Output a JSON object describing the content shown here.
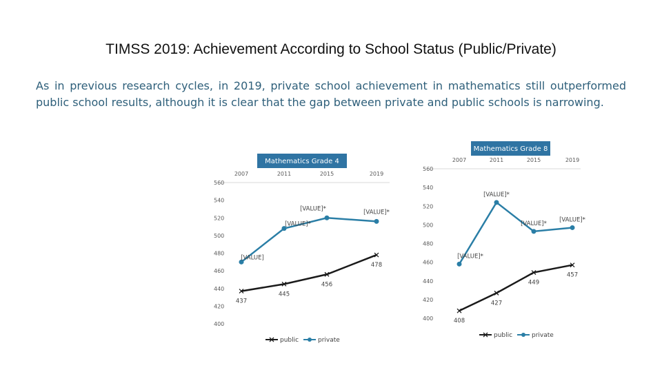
{
  "slide": {
    "title": "TIMSS 2019: Achievement According to School Status (Public/Private)",
    "body": "As in previous research cycles, in 2019, private school achievement in mathematics still outperformed public school results, although it is clear that the gap between private and public schools is narrowing."
  },
  "colors": {
    "public": "#1a1a1a",
    "private": "#2a7ea6",
    "title_box": "#2f74a3",
    "axis": "#d9d9d9"
  },
  "chart_data": [
    {
      "type": "line",
      "title": "Mathematics Grade 4",
      "categories": [
        "2007",
        "2011",
        "2015",
        "2019"
      ],
      "ylim": [
        400,
        560
      ],
      "yticks": [
        "400",
        "420",
        "440",
        "460",
        "480",
        "500",
        "520",
        "540",
        "560"
      ],
      "x_axis_position": "top",
      "legend_position": "bottom",
      "series": [
        {
          "name": "public",
          "marker": "x",
          "values": [
            437,
            445,
            456,
            478
          ],
          "labels": [
            "437",
            "445",
            "456",
            "478"
          ]
        },
        {
          "name": "private",
          "marker": "circle",
          "values": [
            470,
            508,
            520,
            516
          ],
          "labels": [
            "[VALUE]",
            "[VALUE]*",
            "[VALUE]*",
            "[VALUE]*"
          ]
        }
      ]
    },
    {
      "type": "line",
      "title": "Mathematics Grade 8",
      "categories": [
        "2007",
        "2011",
        "2015",
        "2019"
      ],
      "ylim": [
        400,
        560
      ],
      "yticks": [
        "400",
        "420",
        "440",
        "460",
        "480",
        "500",
        "520",
        "540",
        "560"
      ],
      "x_axis_position": "top",
      "legend_position": "bottom",
      "series": [
        {
          "name": "public",
          "marker": "x",
          "values": [
            408,
            427,
            449,
            457
          ],
          "labels": [
            "408",
            "427",
            "449",
            "457"
          ]
        },
        {
          "name": "private",
          "marker": "circle",
          "values": [
            458,
            524,
            493,
            497
          ],
          "labels": [
            "[VALUE]*",
            "[VALUE]*",
            "[VALUE]*",
            "[VALUE]*"
          ]
        }
      ]
    }
  ]
}
